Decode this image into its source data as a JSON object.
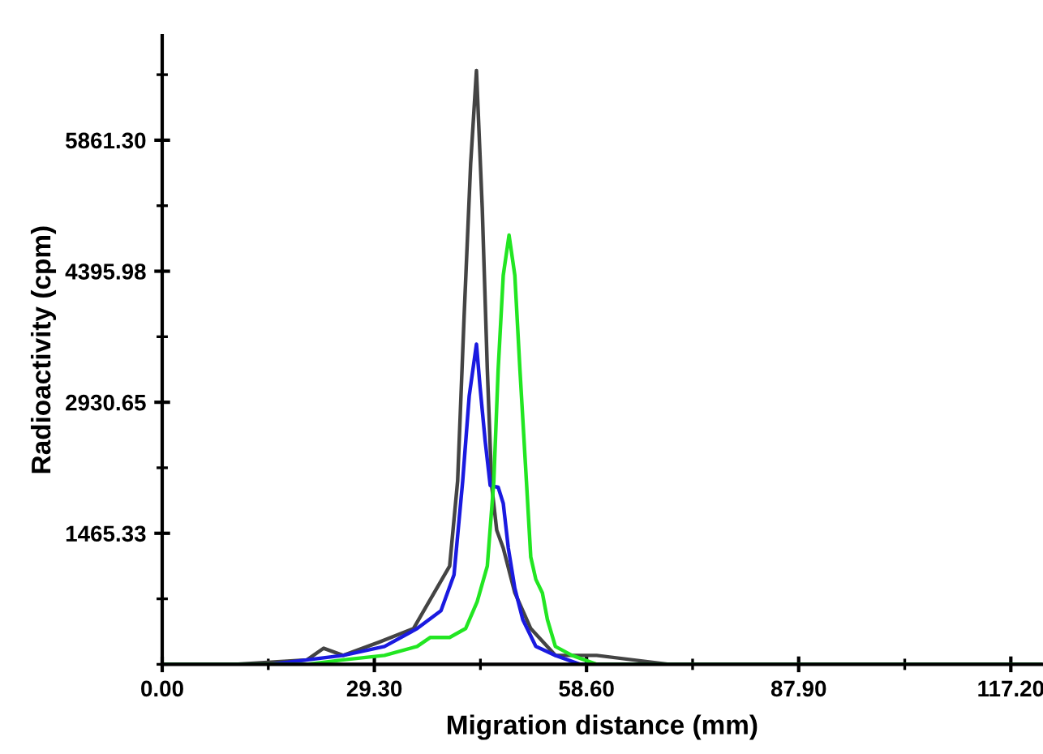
{
  "chart_data": {
    "type": "line",
    "xlabel": "Migration distance (mm)",
    "ylabel": "Radioactivity (cpm)",
    "xlim": [
      0,
      121.5
    ],
    "ylim": [
      0,
      7030
    ],
    "xticks": [
      {
        "value": 0,
        "label": "0.00"
      },
      {
        "value": 29.3,
        "label": "29.30"
      },
      {
        "value": 58.6,
        "label": "58.60"
      },
      {
        "value": 87.9,
        "label": "87.90"
      },
      {
        "value": 117.2,
        "label": "117.20"
      }
    ],
    "yticks": [
      {
        "value": 1465.33,
        "label": "1465.33"
      },
      {
        "value": 2930.65,
        "label": "2930.65"
      },
      {
        "value": 4395.98,
        "label": "4395.98"
      },
      {
        "value": 5861.3,
        "label": "5861.30"
      }
    ],
    "grid": false,
    "marker": "none",
    "line_style": "solid",
    "series": [
      {
        "color": "#444444",
        "x": [
          0,
          10,
          20,
          22.3,
          25,
          30,
          34.7,
          39.7,
          40.8,
          41.7,
          42.6,
          43.4,
          44.2,
          44.9,
          45.5,
          46.2,
          47.1,
          48.7,
          50.9,
          54.3,
          60,
          70,
          90,
          121.5
        ],
        "values": [
          0,
          0,
          50,
          180,
          100,
          250,
          400,
          1100,
          2050,
          3900,
          5600,
          6640,
          5100,
          3300,
          2000,
          1500,
          1300,
          800,
          400,
          100,
          100,
          0,
          0,
          0
        ]
      },
      {
        "color": "#1a1ae0",
        "x": [
          0,
          15,
          25,
          30.7,
          35.2,
          38.5,
          40.3,
          41.5,
          42.4,
          43.4,
          43.9,
          44.6,
          45.3,
          46.4,
          47.1,
          47.8,
          48.7,
          49.8,
          51.6,
          54.3,
          57.7,
          70,
          121.5
        ],
        "values": [
          0,
          0,
          100,
          200,
          400,
          600,
          1000,
          2050,
          3000,
          3580,
          3100,
          2500,
          2000,
          1980,
          1800,
          1300,
          850,
          500,
          200,
          100,
          0,
          0,
          0
        ]
      },
      {
        "color": "#22e622",
        "x": [
          0,
          10,
          20,
          25,
          30.7,
          35.2,
          37.0,
          39.7,
          41.9,
          43.5,
          44.9,
          45.8,
          46.4,
          47.1,
          47.9,
          48.7,
          49.4,
          50.3,
          50.9,
          51.6,
          52.5,
          53.2,
          54.3,
          56.6,
          60,
          80,
          121.5
        ],
        "values": [
          0,
          0,
          0,
          50,
          100,
          200,
          300,
          300,
          400,
          700,
          1100,
          2050,
          3300,
          4350,
          4800,
          4350,
          3300,
          2050,
          1200,
          950,
          800,
          500,
          200,
          100,
          0,
          0,
          0
        ]
      }
    ]
  }
}
